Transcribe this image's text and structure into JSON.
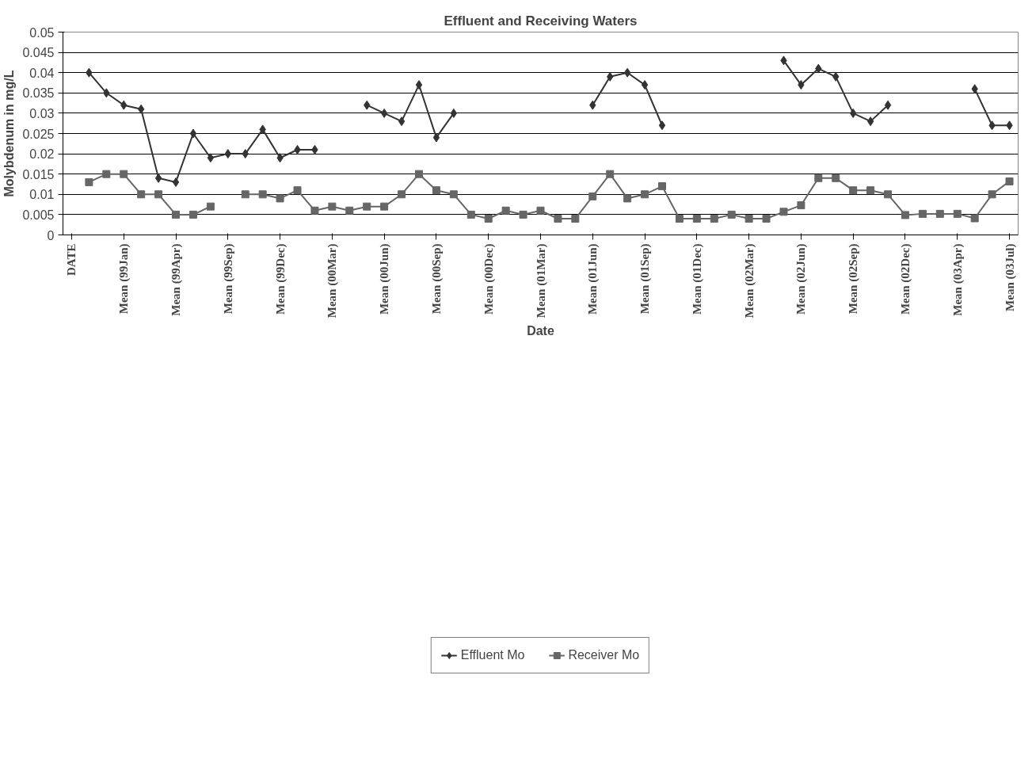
{
  "chart_data": {
    "type": "line",
    "title": "Effluent and Receiving Waters",
    "xlabel": "Date",
    "ylabel": "Molybdenum in mg/L",
    "categories": [
      "DATE",
      null,
      null,
      "Mean (99Jan)",
      null,
      null,
      "Mean (99Apr)",
      null,
      null,
      "Mean (99Sep)",
      null,
      null,
      "Mean (99Dec)",
      null,
      null,
      "Mean (00Mar)",
      null,
      null,
      "Mean (00Jun)",
      null,
      null,
      "Mean (00Sep)",
      null,
      null,
      "Mean (00Dec)",
      null,
      null,
      "Mean (01Mar)",
      null,
      null,
      "Mean (01Jun)",
      null,
      null,
      "Mean (01Sep)",
      null,
      null,
      "Mean (01Dec)",
      null,
      null,
      "Mean (02Mar)",
      null,
      null,
      "Mean (02Jun)",
      null,
      null,
      "Mean (02Sep)",
      null,
      null,
      "Mean (02Dec)",
      null,
      null,
      "Mean (03Apr)",
      null,
      null,
      "Mean (03Jul)"
    ],
    "series": [
      {
        "name": "Effluent Mo",
        "color": "#333333",
        "marker": "diamond",
        "values": [
          null,
          0.04,
          0.035,
          0.032,
          0.031,
          0.014,
          0.013,
          0.025,
          0.019,
          0.02,
          0.02,
          0.026,
          0.019,
          0.021,
          0.021,
          null,
          null,
          0.032,
          0.03,
          0.028,
          0.037,
          0.024,
          0.03,
          null,
          null,
          null,
          null,
          null,
          null,
          null,
          0.032,
          0.039,
          0.04,
          0.037,
          0.027,
          null,
          null,
          null,
          null,
          null,
          null,
          0.043,
          0.037,
          0.041,
          0.039,
          0.03,
          0.028,
          0.032,
          null,
          null,
          null,
          null,
          0.036,
          0.027,
          0.027
        ]
      },
      {
        "name": "Receiver Mo",
        "color": "#666666",
        "marker": "square",
        "values": [
          null,
          0.013,
          0.015,
          0.015,
          0.01,
          0.01,
          0.005,
          0.005,
          0.007,
          null,
          0.01,
          0.01,
          0.009,
          0.011,
          0.006,
          0.007,
          0.006,
          0.007,
          0.007,
          0.01,
          0.015,
          0.011,
          0.01,
          0.005,
          0.004,
          0.006,
          0.005,
          0.006,
          0.004,
          0.004,
          0.0095,
          0.015,
          0.009,
          0.01,
          0.012,
          0.004,
          0.004,
          0.004,
          0.005,
          0.004,
          0.004,
          0.0057,
          0.0073,
          0.014,
          0.014,
          0.011,
          0.011,
          0.01,
          0.0049,
          0.0052,
          0.0052,
          0.0052,
          0.0041,
          0.01,
          0.0132
        ]
      }
    ],
    "ylim": [
      0,
      0.05
    ],
    "yticks": [
      0,
      0.005,
      0.01,
      0.015,
      0.02,
      0.025,
      0.03,
      0.035,
      0.04,
      0.045,
      0.05
    ],
    "grid": "y",
    "legend": "bottom",
    "line_style": "solid"
  }
}
